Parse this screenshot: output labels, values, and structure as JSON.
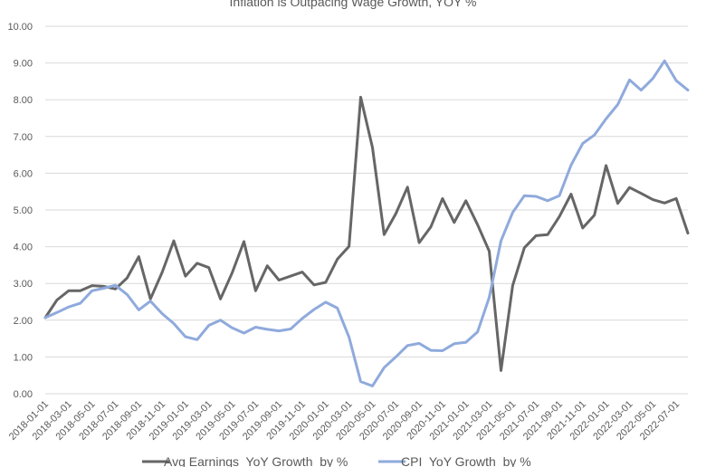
{
  "chart_data": {
    "type": "line",
    "title": "Inflation is Outpacing Wage Growth, YOY %",
    "xlabel": "",
    "ylabel": "",
    "ylim": [
      0,
      10
    ],
    "yticks": [
      "0.00",
      "1.00",
      "2.00",
      "3.00",
      "4.00",
      "5.00",
      "6.00",
      "7.00",
      "8.00",
      "9.00",
      "10.00"
    ],
    "grid": true,
    "legend": "bottom",
    "x": [
      "2018-01-01",
      "2018-02-01",
      "2018-03-01",
      "2018-04-01",
      "2018-05-01",
      "2018-06-01",
      "2018-07-01",
      "2018-08-01",
      "2018-09-01",
      "2018-10-01",
      "2018-11-01",
      "2018-12-01",
      "2019-01-01",
      "2019-02-01",
      "2019-03-01",
      "2019-04-01",
      "2019-05-01",
      "2019-06-01",
      "2019-07-01",
      "2019-08-01",
      "2019-09-01",
      "2019-10-01",
      "2019-11-01",
      "2019-12-01",
      "2020-01-01",
      "2020-02-01",
      "2020-03-01",
      "2020-04-01",
      "2020-05-01",
      "2020-06-01",
      "2020-07-01",
      "2020-08-01",
      "2020-09-01",
      "2020-10-01",
      "2020-11-01",
      "2020-12-01",
      "2021-01-01",
      "2021-02-01",
      "2021-03-01",
      "2021-04-01",
      "2021-05-01",
      "2021-06-01",
      "2021-07-01",
      "2021-08-01",
      "2021-09-01",
      "2021-10-01",
      "2021-11-01",
      "2021-12-01",
      "2022-01-01",
      "2022-02-01",
      "2022-03-01",
      "2022-04-01",
      "2022-05-01",
      "2022-06-01",
      "2022-07-01",
      "2022-08-01"
    ],
    "xticks": [
      "2018-01-01",
      "2018-03-01",
      "2018-05-01",
      "2018-07-01",
      "2018-09-01",
      "2018-11-01",
      "2019-01-01",
      "2019-03-01",
      "2019-05-01",
      "2019-07-01",
      "2019-09-01",
      "2019-11-01",
      "2020-01-01",
      "2020-03-01",
      "2020-05-01",
      "2020-07-01",
      "2020-09-01",
      "2020-11-01",
      "2021-01-01",
      "2021-03-01",
      "2021-05-01",
      "2021-07-01",
      "2021-09-01",
      "2021-11-01",
      "2022-01-01",
      "2022-03-01",
      "2022-05-01",
      "2022-07-01"
    ],
    "series": [
      {
        "name": "Avg Earnings  YoY Growth  by %",
        "color": "#666666",
        "values": [
          2.07,
          2.55,
          2.8,
          2.8,
          2.94,
          2.92,
          2.85,
          3.15,
          3.73,
          2.58,
          3.3,
          4.16,
          3.2,
          3.55,
          3.43,
          2.58,
          3.29,
          4.14,
          2.8,
          3.48,
          3.09,
          3.2,
          3.31,
          2.96,
          3.03,
          3.66,
          4.01,
          8.07,
          6.7,
          4.33,
          4.9,
          5.62,
          4.11,
          4.54,
          5.31,
          4.66,
          5.25,
          4.6,
          3.88,
          0.63,
          2.94,
          3.97,
          4.3,
          4.33,
          4.82,
          5.43,
          4.51,
          4.86,
          6.21,
          5.18,
          5.61,
          5.45,
          5.28,
          5.19,
          5.31,
          4.37
        ]
      },
      {
        "name": "CPI  YoY Growth  by %",
        "color": "#8faadc",
        "values": [
          2.07,
          2.21,
          2.36,
          2.46,
          2.8,
          2.87,
          2.95,
          2.7,
          2.28,
          2.52,
          2.18,
          1.91,
          1.55,
          1.47,
          1.86,
          2.0,
          1.79,
          1.65,
          1.81,
          1.75,
          1.71,
          1.76,
          2.05,
          2.29,
          2.49,
          2.33,
          1.54,
          0.33,
          0.21,
          0.71,
          1.0,
          1.31,
          1.37,
          1.18,
          1.17,
          1.36,
          1.4,
          1.68,
          2.62,
          4.16,
          4.93,
          5.39,
          5.37,
          5.25,
          5.39,
          6.22,
          6.81,
          7.04,
          7.48,
          7.87,
          8.54,
          8.26,
          8.58,
          9.06,
          8.52,
          8.26
        ]
      }
    ]
  }
}
